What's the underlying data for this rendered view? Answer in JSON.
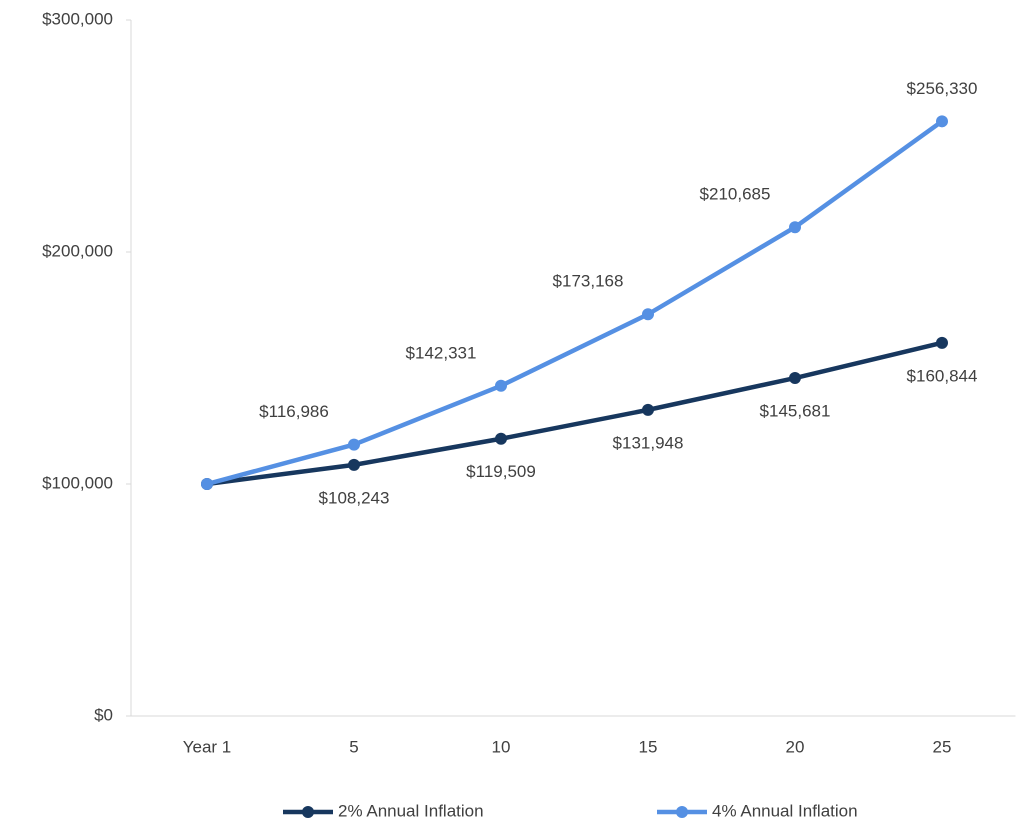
{
  "chart_data": {
    "type": "line",
    "categories": [
      "Year 1",
      "5",
      "10",
      "15",
      "20",
      "25"
    ],
    "series": [
      {
        "name": "2% Annual Inflation",
        "color": "#17375e",
        "values": [
          100000,
          108243,
          119509,
          131948,
          145681,
          160844
        ],
        "value_labels": [
          null,
          "$108,243",
          "$119,509",
          "$131,948",
          "$145,681",
          "$160,844"
        ]
      },
      {
        "name": "4% Annual Inflation",
        "color": "#5590e3",
        "values": [
          100000,
          116986,
          142331,
          173168,
          210685,
          256330
        ],
        "value_labels": [
          null,
          "$116,986",
          "$142,331",
          "$173,168",
          "$210,685",
          "$256,330"
        ]
      }
    ],
    "ylim": [
      0,
      300000
    ],
    "yticks": [
      {
        "value": 0,
        "label": "$0"
      },
      {
        "value": 100000,
        "label": "$100,000"
      },
      {
        "value": 200000,
        "label": "$200,000"
      },
      {
        "value": 300000,
        "label": "$300,000"
      }
    ],
    "grid": false,
    "legend": "bottom"
  }
}
